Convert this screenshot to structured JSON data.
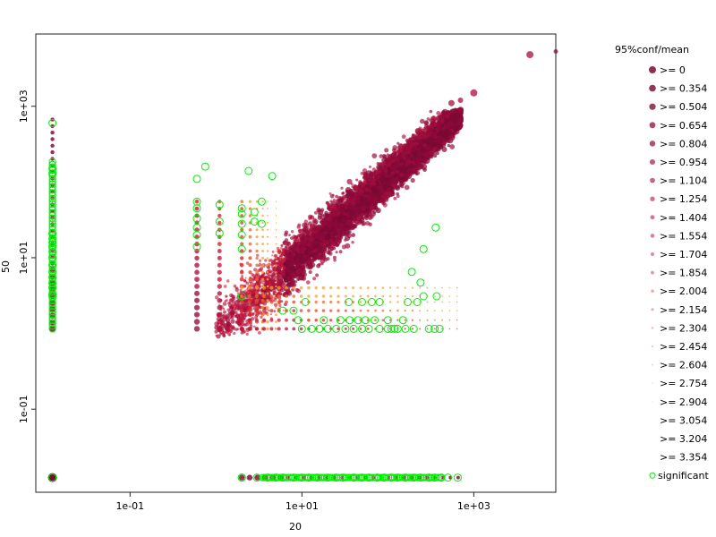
{
  "chart_data": {
    "type": "scatter",
    "xlabel": "20",
    "ylabel": "50",
    "x_scale": "log",
    "y_scale": "log",
    "xlim": [
      0.008,
      9000
    ],
    "ylim": [
      0.008,
      9000
    ],
    "x_ticks": [
      {
        "value": 0.1,
        "label": "1e-01"
      },
      {
        "value": 10,
        "label": "1e+01"
      },
      {
        "value": 1000,
        "label": "1e+03"
      }
    ],
    "y_ticks": [
      {
        "value": 0.1,
        "label": "1e-01"
      },
      {
        "value": 10,
        "label": "1e+01"
      },
      {
        "value": 1000,
        "label": "1e+03"
      }
    ],
    "grid": false,
    "legend_placement": "right",
    "legend": {
      "title": "95%conf/mean",
      "levels": [
        ">= 0",
        ">= 0.354",
        ">= 0.504",
        ">= 0.654",
        ">= 0.804",
        ">= 0.954",
        ">= 1.104",
        ">= 1.254",
        ">= 1.404",
        ">= 1.554",
        ">= 1.704",
        ">= 1.854",
        ">= 2.004",
        ">= 2.154",
        ">= 2.304",
        ">= 2.454",
        ">= 2.604",
        ">= 2.754",
        ">= 2.904",
        ">= 3.054",
        ">= 3.204",
        ">= 3.354"
      ],
      "significant_label": "significant"
    },
    "colors": {
      "low_conf": "#8b0a3a",
      "mid_conf": "#d9252c",
      "high_conf": "#f2a33a",
      "significant": "#00ee00"
    },
    "zero_value_shown_at": 0.0125,
    "series": [
      {
        "name": "significant",
        "points": [
          [
            0.0125,
            3.1
          ],
          [
            0.0125,
            3.3
          ],
          [
            0.0125,
            0.0125
          ],
          [
            0.0125,
            14
          ],
          [
            0.0125,
            18
          ],
          [
            0.0125,
            21
          ],
          [
            0.0125,
            16
          ],
          [
            0.0125,
            12
          ],
          [
            0.0125,
            10
          ],
          [
            0.0125,
            8
          ],
          [
            0.0125,
            6.5
          ],
          [
            0.0125,
            5.5
          ],
          [
            0.0125,
            4.6
          ],
          [
            0.0125,
            4
          ],
          [
            0.0125,
            130
          ],
          [
            0.0125,
            600
          ],
          [
            0.0125,
            150
          ],
          [
            0.6,
            110
          ],
          [
            0.6,
            55
          ],
          [
            0.6,
            45
          ],
          [
            0.6,
            33
          ],
          [
            0.6,
            25
          ],
          [
            0.6,
            20
          ],
          [
            0.6,
            14
          ],
          [
            1.1,
            50
          ],
          [
            1.1,
            30
          ],
          [
            1.1,
            21
          ],
          [
            2,
            3.1
          ],
          [
            2,
            13
          ],
          [
            2,
            20
          ],
          [
            2,
            28
          ],
          [
            2,
            38
          ],
          [
            2,
            45
          ],
          [
            2,
            0.0125
          ],
          [
            2.8,
            40
          ],
          [
            2.8,
            30
          ],
          [
            3.4,
            55
          ],
          [
            3.4,
            28
          ],
          [
            0.75,
            160
          ],
          [
            2.4,
            140
          ],
          [
            4.5,
            120
          ],
          [
            6,
            2
          ],
          [
            8,
            2
          ],
          [
            10,
            1.15
          ],
          [
            13,
            1.15
          ],
          [
            16,
            1.15
          ],
          [
            20,
            1.15
          ],
          [
            25,
            1.15
          ],
          [
            32,
            1.15
          ],
          [
            40,
            1.15
          ],
          [
            50,
            1.15
          ],
          [
            60,
            1.15
          ],
          [
            80,
            1.15
          ],
          [
            100,
            1.15
          ],
          [
            120,
            1.15
          ],
          [
            160,
            1.15
          ],
          [
            200,
            1.15
          ],
          [
            9,
            1.5
          ],
          [
            18,
            1.5
          ],
          [
            28,
            1.5
          ],
          [
            36,
            1.5
          ],
          [
            45,
            1.5
          ],
          [
            55,
            1.5
          ],
          [
            70,
            1.5
          ],
          [
            100,
            1.5
          ],
          [
            150,
            1.5
          ],
          [
            11,
            2.6
          ],
          [
            35,
            2.6
          ],
          [
            50,
            2.6
          ],
          [
            65,
            2.6
          ],
          [
            80,
            2.6
          ],
          [
            170,
            2.6
          ],
          [
            220,
            2.6
          ],
          [
            110,
            1.15
          ],
          [
            130,
            1.15
          ],
          [
            300,
            1.15
          ],
          [
            350,
            1.15
          ],
          [
            400,
            1.15
          ],
          [
            190,
            6.5
          ],
          [
            240,
            4.7
          ],
          [
            260,
            3.1
          ],
          [
            260,
            13
          ],
          [
            360,
            25
          ],
          [
            370,
            3.1
          ],
          [
            2,
            0.0125
          ],
          [
            3,
            0.0125
          ],
          [
            4,
            0.0125
          ],
          [
            5,
            0.0125
          ],
          [
            6,
            0.0125
          ],
          [
            8,
            0.0125
          ],
          [
            10,
            0.0125
          ],
          [
            12,
            0.0125
          ],
          [
            15,
            0.0125
          ],
          [
            20,
            0.0125
          ],
          [
            25,
            0.0125
          ],
          [
            30,
            0.0125
          ],
          [
            40,
            0.0125
          ],
          [
            50,
            0.0125
          ],
          [
            60,
            0.0125
          ],
          [
            75,
            0.0125
          ],
          [
            90,
            0.0125
          ],
          [
            110,
            0.0125
          ],
          [
            130,
            0.0125
          ],
          [
            160,
            0.0125
          ],
          [
            200,
            0.0125
          ],
          [
            240,
            0.0125
          ],
          [
            300,
            0.0125
          ],
          [
            350,
            0.0125
          ],
          [
            420,
            0.0125
          ],
          [
            500,
            0.0125
          ],
          [
            650,
            0.0125
          ]
        ]
      }
    ]
  }
}
